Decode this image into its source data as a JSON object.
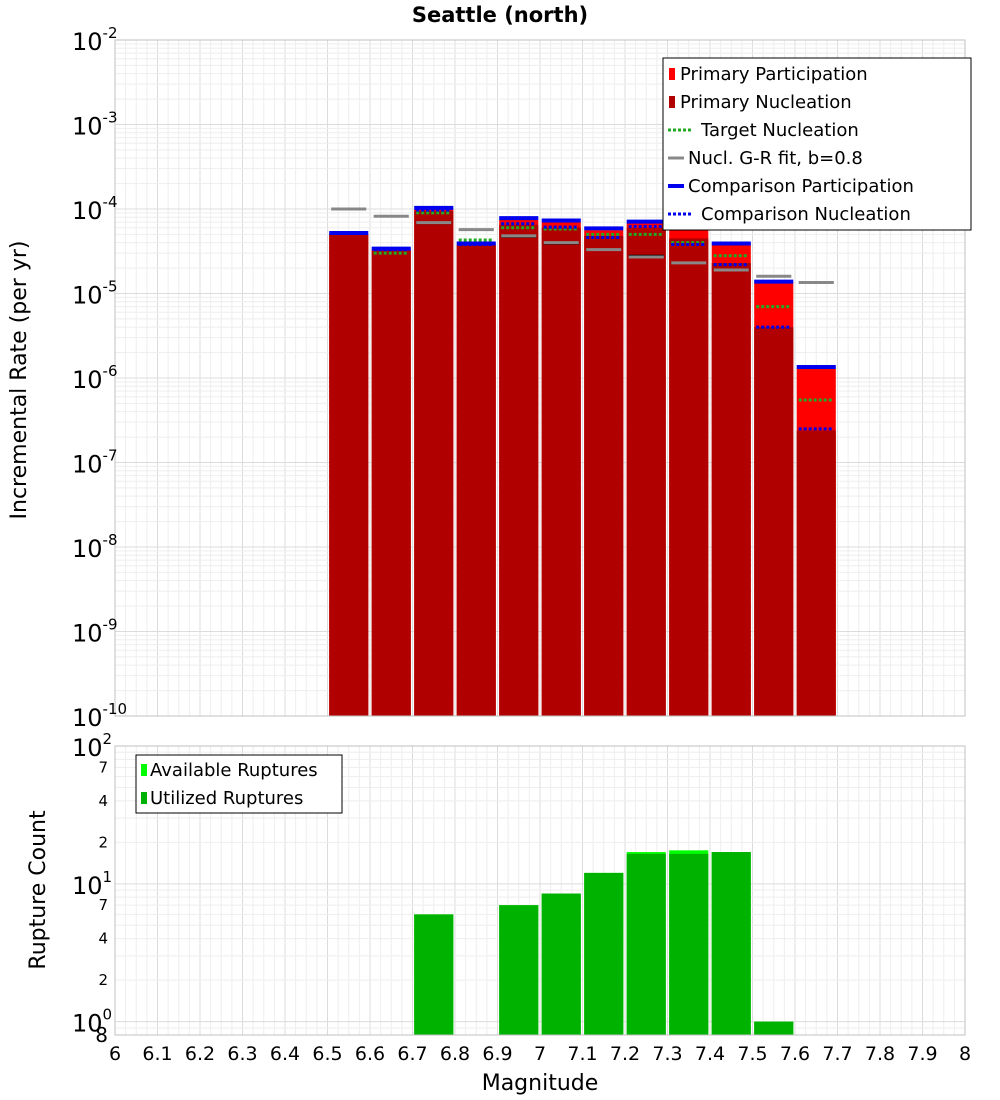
{
  "title": "Seattle (north)",
  "colors": {
    "primary_participation": "#ff0000",
    "primary_nucleation": "#b00000",
    "target_nucleation": "#22aa22",
    "gr_fit": "#888888",
    "comparison_participation": "#0000ee",
    "comparison_nucleation": "#0000ee",
    "available_ruptures": "#00ff00",
    "utilized_ruptures": "#00b200",
    "grid": "#e6e6e6",
    "black_marks": "#000000"
  },
  "chart_data": [
    {
      "type": "bar",
      "scale": "log",
      "xlabel": "Magnitude",
      "ylabel": "Incremental Rate (per yr)",
      "xlim": [
        6,
        8
      ],
      "ylim": [
        1e-10,
        0.01
      ],
      "y_tick_exponents": [
        "-10",
        "-9",
        "-8",
        "-7",
        "-6",
        "-5",
        "-4",
        "-3",
        "-2"
      ],
      "y_tick_base": "10",
      "legend_position": "top-right",
      "legend": [
        "Primary Participation",
        "Primary Nucleation",
        "Target Nucleation",
        "Nucl. G-R fit, b=0.8",
        "Comparison Participation",
        "Comparison Nucleation"
      ],
      "x": [
        6.55,
        6.65,
        6.75,
        6.85,
        6.95,
        7.05,
        7.15,
        7.25,
        7.35,
        7.45,
        7.55,
        7.65
      ],
      "series": [
        {
          "name": "Primary Participation",
          "values": [
            5e-05,
            3.3e-05,
            0.0001,
            3.8e-05,
            7.5e-05,
            7e-05,
            5.6e-05,
            6.8e-05,
            5.8e-05,
            3.8e-05,
            1.35e-05,
            1.3e-06
          ]
        },
        {
          "name": "Primary Nucleation",
          "values": [
            5e-05,
            3.2e-05,
            9.5e-05,
            3.7e-05,
            6.5e-05,
            6e-05,
            4.8e-05,
            6e-05,
            4.5e-05,
            2.3e-05,
            4e-06,
            2.4e-07
          ]
        },
        {
          "name": "Target Nucleation",
          "values": [
            null,
            3e-05,
            9e-05,
            4.3e-05,
            6e-05,
            5.8e-05,
            5e-05,
            5e-05,
            4e-05,
            2.8e-05,
            7e-06,
            5.5e-07
          ]
        },
        {
          "name": "Nucl. G-R fit, b=0.8",
          "values": [
            0.0001,
            8.2e-05,
            6.9e-05,
            5.7e-05,
            4.8e-05,
            4e-05,
            3.3e-05,
            2.7e-05,
            2.3e-05,
            1.9e-05,
            1.6e-05,
            1.35e-05
          ]
        },
        {
          "name": "Comparison Participation",
          "values": [
            5.2e-05,
            3.4e-05,
            0.000103,
            3.9e-05,
            7.8e-05,
            7.3e-05,
            5.9e-05,
            7.1e-05,
            6e-05,
            3.9e-05,
            1.38e-05,
            1.35e-06
          ]
        },
        {
          "name": "Comparison Nucleation",
          "values": [
            5.2e-05,
            3.3e-05,
            9.7e-05,
            3.8e-05,
            6.7e-05,
            6.1e-05,
            4.6e-05,
            6.2e-05,
            3.8e-05,
            2.2e-05,
            4e-06,
            2.5e-07
          ]
        }
      ],
      "black_marks": [
        null,
        null,
        6.8e-05,
        null,
        4.7e-05,
        3.9e-05,
        3.3e-05,
        2.8e-05,
        2.3e-05,
        1.9e-05,
        null,
        null
      ]
    },
    {
      "type": "bar",
      "scale": "log",
      "xlabel": "Magnitude",
      "ylabel": "Rupture Count",
      "xlim": [
        6,
        8
      ],
      "ylim": [
        0.8,
        100
      ],
      "x_ticks": [
        "6",
        "6.1",
        "6.2",
        "6.3",
        "6.4",
        "6.5",
        "6.6",
        "6.7",
        "6.8",
        "6.9",
        "7",
        "7.1",
        "7.2",
        "7.3",
        "7.4",
        "7.5",
        "7.6",
        "7.7",
        "7.8",
        "7.9",
        "8"
      ],
      "y_major_ticks": [
        {
          "value": 1,
          "base": "10",
          "exp": "0"
        },
        {
          "value": 10,
          "base": "10",
          "exp": "1"
        },
        {
          "value": 100,
          "base": "10",
          "exp": "2"
        }
      ],
      "y_minor_ticks": [
        {
          "value": 0.8,
          "label": "8"
        },
        {
          "value": 2,
          "label": "2"
        },
        {
          "value": 4,
          "label": "4"
        },
        {
          "value": 7,
          "label": "7"
        },
        {
          "value": 20,
          "label": "2"
        },
        {
          "value": 40,
          "label": "4"
        },
        {
          "value": 70,
          "label": "7"
        }
      ],
      "legend_position": "top-left",
      "legend": [
        "Available Ruptures",
        "Utilized Ruptures"
      ],
      "x": [
        6.55,
        6.65,
        6.75,
        6.85,
        6.95,
        7.05,
        7.15,
        7.25,
        7.35,
        7.45,
        7.55,
        7.65
      ],
      "series": [
        {
          "name": "Available Ruptures",
          "values": [
            null,
            null,
            6,
            null,
            7,
            8.5,
            12,
            17,
            17.5,
            17,
            1,
            null
          ]
        },
        {
          "name": "Utilized Ruptures",
          "values": [
            null,
            null,
            6,
            null,
            7,
            8.5,
            12,
            16.5,
            16.5,
            17,
            1,
            null
          ]
        }
      ]
    }
  ]
}
